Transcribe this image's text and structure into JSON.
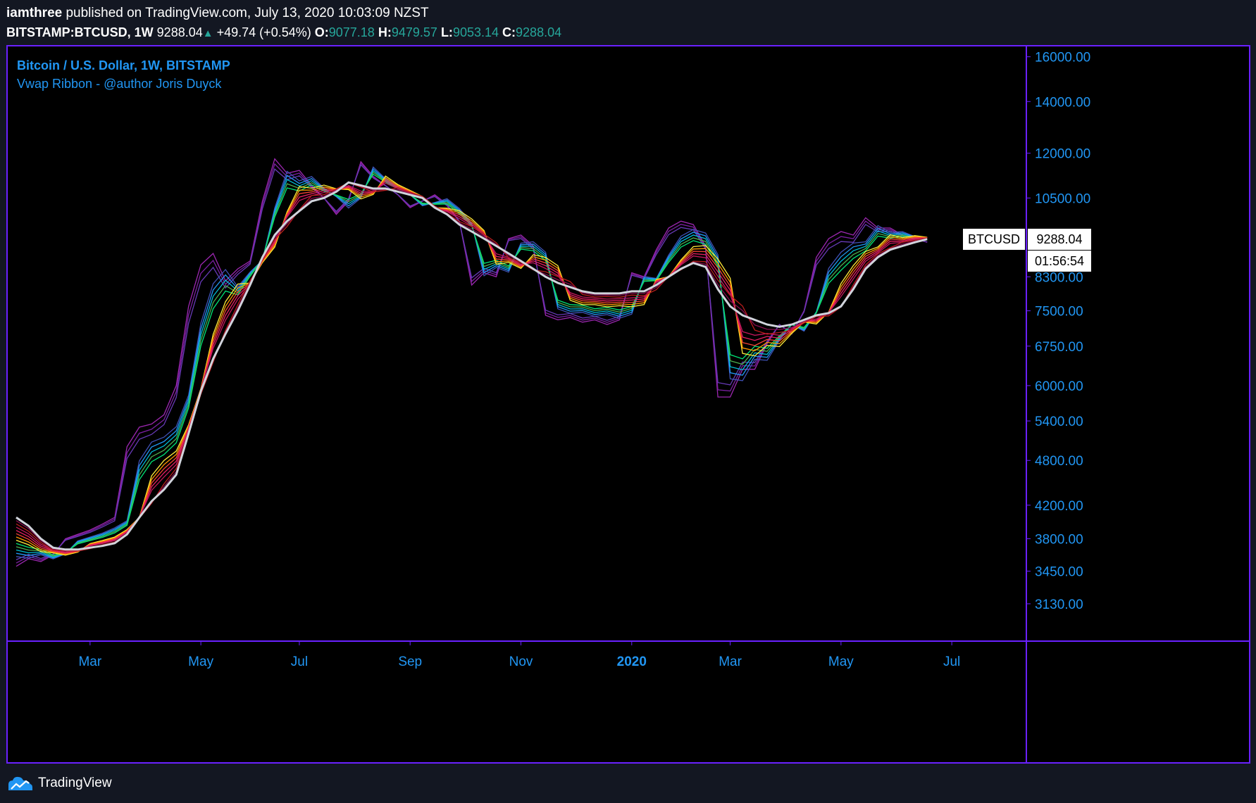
{
  "header": {
    "author": "iamthree",
    "published_text": "published on TradingView.com, July 13, 2020 10:03:09 NZST",
    "symbol": "BITSTAMP:BTCUSD, 1W",
    "last": "9288.04",
    "arrow": "▲",
    "change": "+49.74 (+0.54%)",
    "o_label": "O:",
    "o_value": "9077.18",
    "h_label": "H:",
    "h_value": "9479.57",
    "l_label": "L:",
    "l_value": "9053.14",
    "c_label": "C:",
    "c_value": "9288.04"
  },
  "legend": {
    "title": "Bitcoin / U.S. Dollar, 1W, BITSTAMP",
    "indicator": "Vwap Ribbon - @author Joris Duyck"
  },
  "price_label": {
    "name": "BTCUSD",
    "value": "9288.04",
    "countdown": "01:56:54"
  },
  "footer": {
    "brand": "TradingView"
  },
  "colors": {
    "background": "#000000",
    "frame": "#6a21ff",
    "axis_text": "#2196f3",
    "white_line": "#d1d4dc",
    "ribbon": [
      "#9c27b0",
      "#7b1fa2",
      "#673ab7",
      "#3f51b5",
      "#2196f3",
      "#00bcd4",
      "#4caf50",
      "#00e676",
      "#ffeb3b",
      "#ff9800",
      "#f44336",
      "#e91e63",
      "#c2185b",
      "#b71c1c",
      "#880e4f"
    ]
  },
  "chart_data": {
    "type": "line",
    "scale": "log",
    "ylim": [
      2800,
      16500
    ],
    "y_ticks": [
      16000,
      14000,
      12000,
      10500,
      9500,
      8300,
      7500,
      6750,
      6000,
      5400,
      4800,
      4200,
      3800,
      3450,
      3130
    ],
    "y_tick_labels": [
      "16000.00",
      "14000.00",
      "12000.00",
      "10500.00",
      "",
      "8300.00",
      "7500.00",
      "6750.00",
      "6000.00",
      "5400.00",
      "4800.00",
      "4200.00",
      "3800.00",
      "3450.00",
      "3130.00"
    ],
    "x_ticks": [
      {
        "label": "Mar",
        "week": 6,
        "bold": false
      },
      {
        "label": "May",
        "week": 15,
        "bold": false
      },
      {
        "label": "Jul",
        "week": 23,
        "bold": false
      },
      {
        "label": "Sep",
        "week": 32,
        "bold": false
      },
      {
        "label": "Nov",
        "week": 41,
        "bold": false
      },
      {
        "label": "2020",
        "week": 50,
        "bold": true
      },
      {
        "label": "Mar",
        "week": 58,
        "bold": false
      },
      {
        "label": "May",
        "week": 67,
        "bold": false
      },
      {
        "label": "Jul",
        "week": 76,
        "bold": false
      }
    ],
    "week_range": [
      0,
      82
    ],
    "fast_curve": [
      3500,
      3580,
      3550,
      3620,
      3800,
      3850,
      3900,
      3970,
      4050,
      5000,
      5300,
      5350,
      5500,
      6000,
      7600,
      8600,
      8900,
      8200,
      8500,
      8700,
      10400,
      11800,
      11300,
      11400,
      10900,
      10500,
      10000,
      10400,
      11700,
      11200,
      10900,
      10600,
      10200,
      10400,
      10600,
      10300,
      9800,
      8100,
      8400,
      8300,
      9300,
      9400,
      9100,
      7400,
      7300,
      7350,
      7250,
      7300,
      7200,
      7300,
      8400,
      8300,
      9000,
      9600,
      9800,
      9700,
      9100,
      5800,
      5800,
      6300,
      6300,
      6800,
      7200,
      7000,
      7500,
      8800,
      9300,
      9500,
      9400,
      9900,
      9600,
      9600,
      9400,
      9300,
      9200
    ],
    "slow_curve": [
      4050,
      3950,
      3800,
      3700,
      3680,
      3680,
      3700,
      3720,
      3750,
      3850,
      4050,
      4250,
      4400,
      4600,
      5200,
      5900,
      6500,
      7000,
      7500,
      8100,
      8800,
      9400,
      9800,
      10100,
      10400,
      10500,
      10700,
      11000,
      10900,
      10800,
      10800,
      10700,
      10600,
      10500,
      10200,
      10000,
      9700,
      9500,
      9300,
      9100,
      8900,
      8700,
      8500,
      8300,
      8150,
      8050,
      7950,
      7900,
      7900,
      7900,
      7950,
      7950,
      8100,
      8300,
      8500,
      8650,
      8550,
      8000,
      7600,
      7400,
      7300,
      7200,
      7150,
      7200,
      7300,
      7400,
      7450,
      7600,
      8000,
      8500,
      8800,
      9000,
      9100,
      9200,
      9288
    ]
  }
}
